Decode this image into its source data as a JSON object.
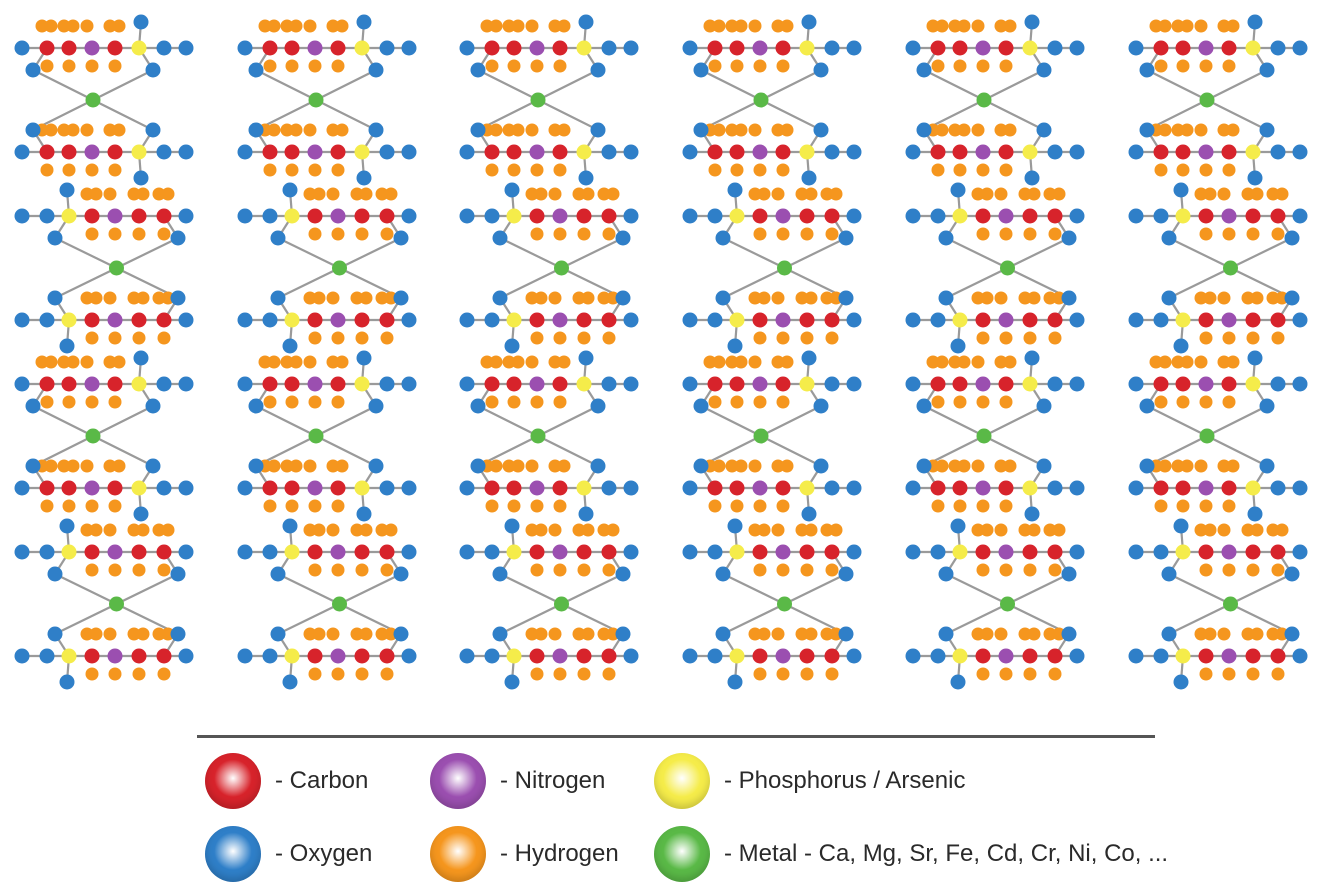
{
  "colors": {
    "carbon": "#d7232b",
    "nitrogen": "#9b4fb0",
    "phosphorus": "#f5ec4a",
    "oxygen": "#2f7fc8",
    "hydrogen": "#f5961e",
    "metal": "#5ab947",
    "bond": "#9a9a9a"
  },
  "legend": [
    {
      "element": "carbon",
      "icon": "carbon-atom-swatch",
      "label": "- Carbon"
    },
    {
      "element": "nitrogen",
      "icon": "nitrogen-atom-swatch",
      "label": "- Nitrogen"
    },
    {
      "element": "phosphorus",
      "icon": "phosphorus-atom-swatch",
      "label": "- Phosphorus / Arsenic"
    },
    {
      "element": "oxygen",
      "icon": "oxygen-atom-swatch",
      "label": "- Oxygen"
    },
    {
      "element": "hydrogen",
      "icon": "hydrogen-atom-swatch",
      "label": "- Hydrogen"
    },
    {
      "element": "metal",
      "icon": "metal-atom-swatch",
      "label": "- Metal - Ca, Mg, Sr, Fe, Cd, Cr, Ni, Co, ..."
    }
  ],
  "lattice": {
    "columns": 6,
    "rows": 4,
    "chain_sequence_ltr": [
      "O",
      "C",
      "C",
      "N",
      "C",
      "P",
      "O",
      "O"
    ],
    "alternate_rows_mirrored": true,
    "metal_link": "X-shaped bridge between chain pairs"
  }
}
